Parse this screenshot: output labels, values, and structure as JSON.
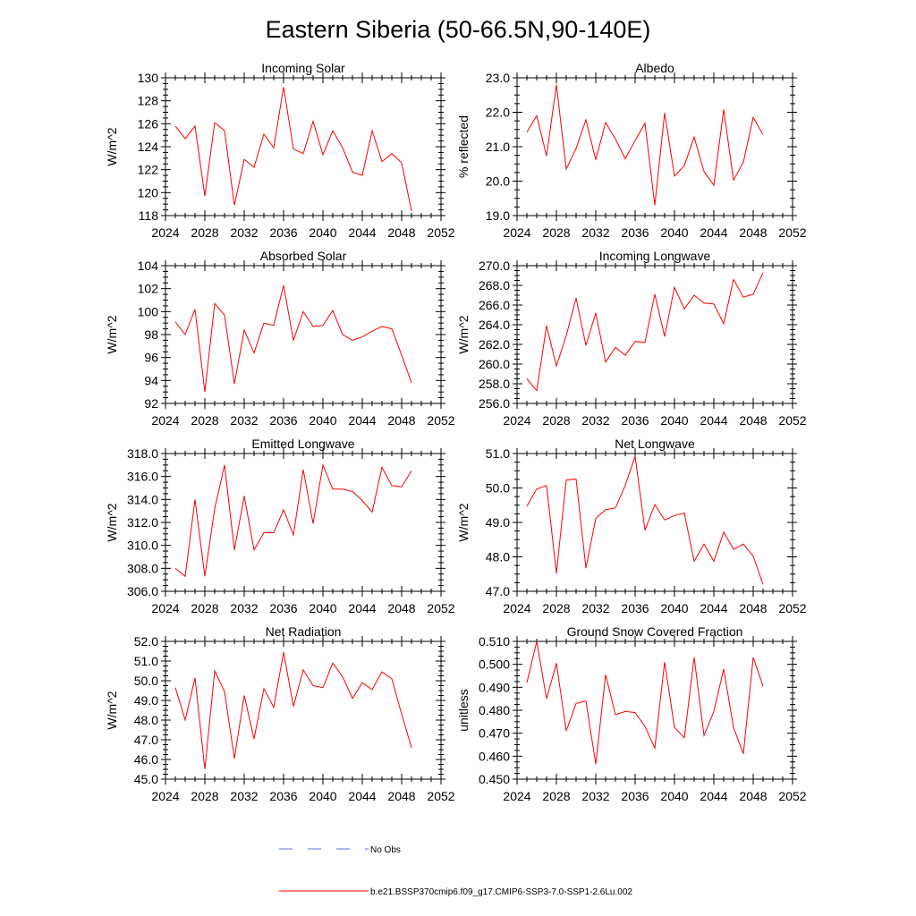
{
  "page": {
    "title": "Eastern Siberia (50-66.5N,90-140E)"
  },
  "legend": {
    "items": [
      {
        "label": "No Obs",
        "color": "#5b6fd6",
        "dash": "dashed"
      },
      {
        "label": "b.e21.BSSP370cmip6.f09_g17.CMIP6-SSP3-7.0-SSP1-2.6Lu.002",
        "color": "#ff0000",
        "dash": "solid"
      }
    ]
  },
  "chart_data": [
    {
      "type": "line",
      "title": "Incoming Solar",
      "ylabel": "W/m^2",
      "xlim": [
        2024,
        2052
      ],
      "ylim": [
        118,
        130
      ],
      "yticks": [
        118,
        120,
        122,
        124,
        126,
        128,
        130
      ],
      "ytick_labels": [
        "118",
        "120",
        "122",
        "124",
        "126",
        "128",
        "130"
      ],
      "xticks": [
        2024,
        2028,
        2032,
        2036,
        2040,
        2044,
        2048,
        2052
      ],
      "xtick_labels": [
        "2024",
        "2028",
        "2032",
        "2036",
        "2040",
        "2044",
        "2048",
        "2052"
      ],
      "series": [
        {
          "color": "#ff0000",
          "x": [
            2025,
            2026,
            2027,
            2028,
            2029,
            2030,
            2031,
            2032,
            2033,
            2034,
            2035,
            2036,
            2037,
            2038,
            2039,
            2040,
            2041,
            2042,
            2043,
            2044,
            2045,
            2046,
            2047,
            2048,
            2049
          ],
          "y": [
            125.8,
            124.7,
            125.8,
            119.7,
            126.1,
            125.4,
            118.9,
            122.9,
            122.2,
            125.1,
            123.9,
            129.2,
            123.8,
            123.4,
            126.2,
            123.3,
            125.4,
            123.9,
            121.8,
            121.5,
            125.4,
            122.7,
            123.4,
            122.6,
            118.4
          ]
        }
      ]
    },
    {
      "type": "line",
      "title": "Albedo",
      "ylabel": "% reflected",
      "xlim": [
        2024,
        2052
      ],
      "ylim": [
        19,
        23
      ],
      "yticks": [
        19,
        20,
        21,
        22,
        23
      ],
      "ytick_labels": [
        "19.0",
        "20.0",
        "21.0",
        "22.0",
        "23.0"
      ],
      "xticks": [
        2024,
        2028,
        2032,
        2036,
        2040,
        2044,
        2048,
        2052
      ],
      "xtick_labels": [
        "2024",
        "2028",
        "2032",
        "2036",
        "2040",
        "2044",
        "2048",
        "2052"
      ],
      "series": [
        {
          "color": "#ff0000",
          "x": [
            2025,
            2026,
            2027,
            2028,
            2029,
            2030,
            2031,
            2032,
            2033,
            2034,
            2035,
            2036,
            2037,
            2038,
            2039,
            2040,
            2041,
            2042,
            2043,
            2044,
            2045,
            2046,
            2047,
            2048,
            2049
          ],
          "y": [
            21.42,
            21.9,
            20.73,
            22.8,
            20.35,
            20.95,
            21.78,
            20.62,
            21.7,
            21.22,
            20.65,
            21.18,
            21.68,
            19.3,
            21.98,
            20.15,
            20.45,
            21.28,
            20.28,
            19.88,
            22.08,
            20.03,
            20.55,
            21.85,
            21.35
          ]
        }
      ]
    },
    {
      "type": "line",
      "title": "Absorbed Solar",
      "ylabel": "W/m^2",
      "xlim": [
        2024,
        2052
      ],
      "ylim": [
        92,
        104
      ],
      "yticks": [
        92,
        94,
        96,
        98,
        100,
        102,
        104
      ],
      "ytick_labels": [
        "92",
        "94",
        "96",
        "98",
        "100",
        "102",
        "104"
      ],
      "xticks": [
        2024,
        2028,
        2032,
        2036,
        2040,
        2044,
        2048,
        2052
      ],
      "xtick_labels": [
        "2024",
        "2028",
        "2032",
        "2036",
        "2040",
        "2044",
        "2048",
        "2052"
      ],
      "series": [
        {
          "color": "#ff0000",
          "x": [
            2025,
            2026,
            2027,
            2028,
            2029,
            2030,
            2031,
            2032,
            2033,
            2034,
            2035,
            2036,
            2037,
            2038,
            2039,
            2040,
            2041,
            2042,
            2043,
            2044,
            2045,
            2046,
            2047,
            2048,
            2049
          ],
          "y": [
            99.1,
            98.0,
            100.2,
            93.0,
            100.7,
            99.7,
            93.7,
            98.4,
            96.4,
            99.0,
            98.8,
            102.3,
            97.5,
            100.0,
            98.7,
            98.8,
            100.1,
            98.0,
            97.5,
            97.8,
            98.3,
            98.7,
            98.5,
            96.2,
            93.8
          ]
        }
      ]
    },
    {
      "type": "line",
      "title": "Incoming Longwave",
      "ylabel": "W/m^2",
      "xlim": [
        2024,
        2052
      ],
      "ylim": [
        256,
        270
      ],
      "yticks": [
        256,
        258,
        260,
        262,
        264,
        266,
        268,
        270
      ],
      "ytick_labels": [
        "256.0",
        "258.0",
        "260.0",
        "262.0",
        "264.0",
        "266.0",
        "268.0",
        "270.0"
      ],
      "xticks": [
        2024,
        2028,
        2032,
        2036,
        2040,
        2044,
        2048,
        2052
      ],
      "xtick_labels": [
        "2024",
        "2028",
        "2032",
        "2036",
        "2040",
        "2044",
        "2048",
        "2052"
      ],
      "series": [
        {
          "color": "#ff0000",
          "x": [
            2025,
            2026,
            2027,
            2028,
            2029,
            2030,
            2031,
            2032,
            2033,
            2034,
            2035,
            2036,
            2037,
            2038,
            2039,
            2040,
            2041,
            2042,
            2043,
            2044,
            2045,
            2046,
            2047,
            2048,
            2049
          ],
          "y": [
            258.5,
            257.3,
            263.9,
            259.8,
            262.9,
            266.7,
            261.9,
            265.2,
            260.2,
            261.7,
            260.9,
            262.3,
            262.2,
            267.1,
            262.8,
            267.8,
            265.6,
            267.0,
            266.2,
            266.1,
            264.1,
            268.6,
            266.8,
            267.1,
            269.3
          ]
        }
      ]
    },
    {
      "type": "line",
      "title": "Emitted Longwave",
      "ylabel": "W/m^2",
      "xlim": [
        2024,
        2052
      ],
      "ylim": [
        306,
        318
      ],
      "yticks": [
        306,
        308,
        310,
        312,
        314,
        316,
        318
      ],
      "ytick_labels": [
        "306.0",
        "308.0",
        "310.0",
        "312.0",
        "314.0",
        "316.0",
        "318.0"
      ],
      "xticks": [
        2024,
        2028,
        2032,
        2036,
        2040,
        2044,
        2048,
        2052
      ],
      "xtick_labels": [
        "2024",
        "2028",
        "2032",
        "2036",
        "2040",
        "2044",
        "2048",
        "2052"
      ],
      "series": [
        {
          "color": "#ff0000",
          "x": [
            2025,
            2026,
            2027,
            2028,
            2029,
            2030,
            2031,
            2032,
            2033,
            2034,
            2035,
            2036,
            2037,
            2038,
            2039,
            2040,
            2041,
            2042,
            2043,
            2044,
            2045,
            2046,
            2047,
            2048,
            2049
          ],
          "y": [
            308.0,
            307.3,
            314.0,
            307.3,
            313.2,
            317.0,
            309.6,
            314.3,
            309.6,
            311.1,
            311.1,
            313.1,
            310.9,
            316.6,
            311.9,
            317.0,
            314.9,
            314.9,
            314.7,
            313.9,
            312.9,
            316.8,
            315.2,
            315.1,
            316.5
          ]
        }
      ]
    },
    {
      "type": "line",
      "title": "Net Longwave",
      "ylabel": "W/m^2",
      "xlim": [
        2024,
        2052
      ],
      "ylim": [
        47,
        51
      ],
      "yticks": [
        47,
        48,
        49,
        50,
        51
      ],
      "ytick_labels": [
        "47.0",
        "48.0",
        "49.0",
        "50.0",
        "51.0"
      ],
      "xticks": [
        2024,
        2028,
        2032,
        2036,
        2040,
        2044,
        2048,
        2052
      ],
      "xtick_labels": [
        "2024",
        "2028",
        "2032",
        "2036",
        "2040",
        "2044",
        "2048",
        "2052"
      ],
      "series": [
        {
          "color": "#ff0000",
          "x": [
            2025,
            2026,
            2027,
            2028,
            2029,
            2030,
            2031,
            2032,
            2033,
            2034,
            2035,
            2036,
            2037,
            2038,
            2039,
            2040,
            2041,
            2042,
            2043,
            2044,
            2045,
            2046,
            2047,
            2048,
            2049
          ],
          "y": [
            49.47,
            49.97,
            50.07,
            47.52,
            50.23,
            50.26,
            47.67,
            49.12,
            49.37,
            49.42,
            50.08,
            50.92,
            48.77,
            49.52,
            49.07,
            49.2,
            49.27,
            47.87,
            48.37,
            47.87,
            48.72,
            48.22,
            48.37,
            48.02,
            47.2
          ]
        }
      ]
    },
    {
      "type": "line",
      "title": "Net Radiation",
      "ylabel": "W/m^2",
      "xlim": [
        2024,
        2052
      ],
      "ylim": [
        45,
        52
      ],
      "yticks": [
        45,
        46,
        47,
        48,
        49,
        50,
        51,
        52
      ],
      "ytick_labels": [
        "45.0",
        "46.0",
        "47.0",
        "48.0",
        "49.0",
        "50.0",
        "51.0",
        "52.0"
      ],
      "xticks": [
        2024,
        2028,
        2032,
        2036,
        2040,
        2044,
        2048,
        2052
      ],
      "xtick_labels": [
        "2024",
        "2028",
        "2032",
        "2036",
        "2040",
        "2044",
        "2048",
        "2052"
      ],
      "series": [
        {
          "color": "#ff0000",
          "x": [
            2025,
            2026,
            2027,
            2028,
            2029,
            2030,
            2031,
            2032,
            2033,
            2034,
            2035,
            2036,
            2037,
            2038,
            2039,
            2040,
            2041,
            2042,
            2043,
            2044,
            2045,
            2046,
            2047,
            2048,
            2049
          ],
          "y": [
            49.65,
            48.0,
            50.15,
            45.5,
            50.5,
            49.45,
            46.05,
            49.25,
            47.05,
            49.6,
            48.65,
            51.45,
            48.7,
            50.55,
            49.75,
            49.65,
            50.9,
            50.2,
            49.1,
            49.9,
            49.55,
            50.45,
            50.1,
            48.3,
            46.6
          ]
        }
      ]
    },
    {
      "type": "line",
      "title": "Ground Snow Covered Fraction",
      "ylabel": "unitless",
      "xlim": [
        2024,
        2052
      ],
      "ylim": [
        0.45,
        0.51
      ],
      "yticks": [
        0.45,
        0.46,
        0.47,
        0.48,
        0.49,
        0.5,
        0.51
      ],
      "ytick_labels": [
        "0.450",
        "0.460",
        "0.470",
        "0.480",
        "0.490",
        "0.500",
        "0.510"
      ],
      "xticks": [
        2024,
        2028,
        2032,
        2036,
        2040,
        2044,
        2048,
        2052
      ],
      "xtick_labels": [
        "2024",
        "2028",
        "2032",
        "2036",
        "2040",
        "2044",
        "2048",
        "2052"
      ],
      "series": [
        {
          "color": "#ff0000",
          "x": [
            2025,
            2026,
            2027,
            2028,
            2029,
            2030,
            2031,
            2032,
            2033,
            2034,
            2035,
            2036,
            2037,
            2038,
            2039,
            2040,
            2041,
            2042,
            2043,
            2044,
            2045,
            2046,
            2047,
            2048,
            2049
          ],
          "y": [
            0.492,
            0.51,
            0.485,
            0.5005,
            0.471,
            0.483,
            0.484,
            0.4565,
            0.4955,
            0.478,
            0.4795,
            0.479,
            0.473,
            0.4635,
            0.501,
            0.4725,
            0.468,
            0.503,
            0.469,
            0.4795,
            0.498,
            0.4725,
            0.461,
            0.503,
            0.4905
          ]
        }
      ]
    }
  ]
}
